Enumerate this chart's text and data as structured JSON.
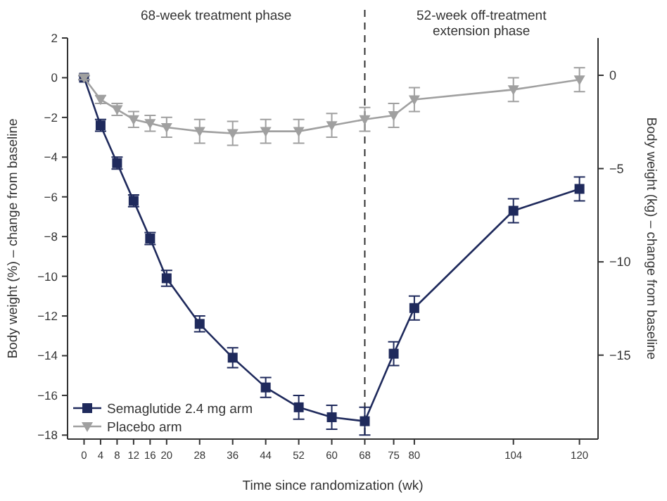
{
  "chart_data": {
    "type": "line",
    "xlabel": "Time since randomization (wk)",
    "ylabel": "Body weight (%) – change from baseline",
    "y2label": "Body weight (kg) – change from baseline",
    "x": [
      0,
      4,
      8,
      12,
      16,
      20,
      28,
      36,
      44,
      52,
      60,
      68,
      75,
      80,
      104,
      120
    ],
    "series": [
      {
        "name": "Semaglutide 2.4 mg arm",
        "color": "#1f2a5c",
        "marker": "square",
        "values": [
          0,
          -2.4,
          -4.3,
          -6.2,
          -8.1,
          -10.1,
          -12.4,
          -14.1,
          -15.6,
          -16.6,
          -17.1,
          -17.3,
          -13.9,
          -11.6,
          -6.7,
          -5.6
        ],
        "errors": [
          0.1,
          0.3,
          0.3,
          0.3,
          0.3,
          0.4,
          0.4,
          0.5,
          0.5,
          0.6,
          0.6,
          0.7,
          0.6,
          0.6,
          0.6,
          0.6
        ]
      },
      {
        "name": "Placebo arm",
        "color": "#a0a0a0",
        "marker": "triangle",
        "values": [
          0,
          -1.1,
          -1.6,
          -2.1,
          -2.3,
          -2.5,
          -2.7,
          -2.8,
          -2.7,
          -2.7,
          -2.4,
          -2.1,
          -1.9,
          -1.1,
          -0.6,
          -0.1
        ],
        "errors": [
          0.1,
          0.2,
          0.3,
          0.4,
          0.4,
          0.5,
          0.6,
          0.6,
          0.6,
          0.6,
          0.6,
          0.6,
          0.6,
          0.6,
          0.6,
          0.6
        ]
      }
    ],
    "xlim": [
      -4,
      124.5
    ],
    "xticks": [
      0,
      4,
      8,
      12,
      16,
      20,
      28,
      36,
      44,
      52,
      60,
      68,
      75,
      80,
      104,
      120
    ],
    "ylim": [
      -18.2,
      2
    ],
    "yticks": [
      -18,
      -16,
      -14,
      -12,
      -10,
      -8,
      -6,
      -4,
      -2,
      0,
      2
    ],
    "y2lim": [
      -19.5,
      2
    ],
    "y2ticks": [
      0,
      -5,
      -10,
      -15
    ],
    "ref_lines": [
      {
        "axis": "x",
        "value": 68,
        "line_style": "dashed",
        "color": "#333333"
      }
    ],
    "annotations": [
      "68-week treatment phase",
      "52-week off-treatment extension phase"
    ],
    "legend": "bottom left",
    "grid": false,
    "line_style": "solid"
  }
}
